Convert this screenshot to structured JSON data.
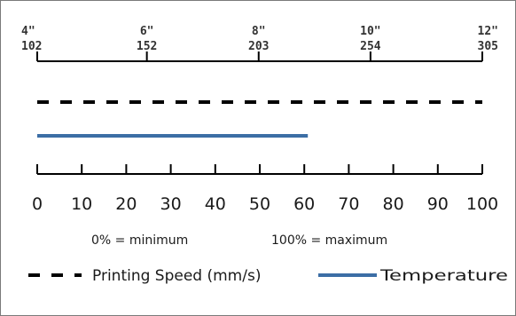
{
  "chart_data": {
    "type": "line",
    "top_axis": {
      "ticks": [
        {
          "inches": "4\"",
          "value": "102"
        },
        {
          "inches": "6\"",
          "value": "152"
        },
        {
          "inches": "8\"",
          "value": "203"
        },
        {
          "inches": "10\"",
          "value": "254"
        },
        {
          "inches": "12\"",
          "value": "305"
        }
      ],
      "range": [
        102,
        305
      ]
    },
    "bottom_axis": {
      "ticks": [
        "0",
        "10",
        "20",
        "30",
        "40",
        "50",
        "60",
        "70",
        "80",
        "90",
        "100"
      ],
      "range": [
        0,
        100
      ],
      "note_min": "0% = minimum",
      "note_max": "100% = maximum"
    },
    "series": [
      {
        "name": "Printing Speed (mm/s)",
        "style": "dashed",
        "color": "#000000",
        "start": 0,
        "end": 100
      },
      {
        "name": "Temperature",
        "style": "solid",
        "color": "#3c6ea5",
        "start": 0,
        "end": 60
      }
    ],
    "legend": {
      "placement": "bottom"
    }
  }
}
